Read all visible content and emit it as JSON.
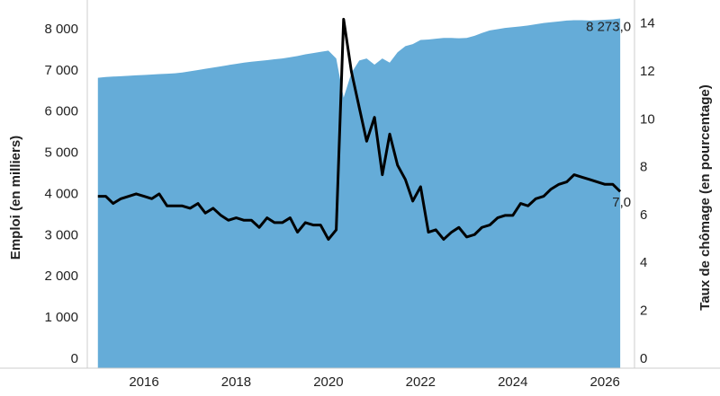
{
  "chart_data": {
    "type": "area-line",
    "y_label": "Emploi (en milliers)",
    "y2_label": "Taux de chômage (en pourcentage)",
    "x": [
      2015.0,
      2015.17,
      2015.33,
      2015.5,
      2015.67,
      2015.83,
      2016.0,
      2016.17,
      2016.33,
      2016.5,
      2016.67,
      2016.83,
      2017.0,
      2017.17,
      2017.33,
      2017.5,
      2017.67,
      2017.83,
      2018.0,
      2018.17,
      2018.33,
      2018.5,
      2018.67,
      2018.83,
      2019.0,
      2019.17,
      2019.33,
      2019.5,
      2019.67,
      2019.83,
      2020.0,
      2020.17,
      2020.33,
      2020.5,
      2020.67,
      2020.83,
      2021.0,
      2021.17,
      2021.33,
      2021.5,
      2021.67,
      2021.83,
      2022.0,
      2022.17,
      2022.33,
      2022.5,
      2022.67,
      2022.83,
      2023.0,
      2023.17,
      2023.33,
      2023.5,
      2023.67,
      2023.83,
      2024.0,
      2024.17,
      2024.33,
      2024.5,
      2024.67,
      2024.83,
      2025.0,
      2025.17,
      2025.33,
      2025.5,
      2025.67,
      2025.83,
      2026.0,
      2026.17,
      2026.33
    ],
    "series": [
      {
        "kind": "area",
        "color": "#65acd8",
        "values": [
          6830,
          6850,
          6860,
          6870,
          6880,
          6890,
          6900,
          6910,
          6920,
          6930,
          6940,
          6960,
          6990,
          7020,
          7050,
          7080,
          7110,
          7140,
          7170,
          7200,
          7220,
          7240,
          7260,
          7280,
          7300,
          7330,
          7360,
          7400,
          7430,
          7460,
          7490,
          7300,
          6350,
          6950,
          7250,
          7300,
          7150,
          7300,
          7200,
          7450,
          7600,
          7650,
          7750,
          7760,
          7780,
          7800,
          7800,
          7790,
          7800,
          7850,
          7920,
          7980,
          8010,
          8040,
          8060,
          8080,
          8100,
          8130,
          8160,
          8180,
          8200,
          8220,
          8230,
          8230,
          8220,
          8230,
          8240,
          8250,
          8273
        ],
        "value_labels": [
          null,
          null,
          null,
          null,
          null,
          null,
          null,
          null,
          null,
          null,
          null,
          null,
          null,
          null,
          null,
          null,
          null,
          null,
          null,
          null,
          null,
          null,
          null,
          null,
          null,
          null,
          null,
          null,
          null,
          null,
          null,
          null,
          null,
          null,
          null,
          null,
          null,
          null,
          null,
          null,
          null,
          null,
          null,
          null,
          null,
          null,
          null,
          null,
          null,
          null,
          null,
          null,
          null,
          null,
          null,
          null,
          null,
          null,
          null,
          null,
          null,
          null,
          null,
          null,
          null,
          null,
          null,
          null,
          "8 273,0"
        ]
      },
      {
        "kind": "line",
        "axis": "y2",
        "color": "#000000",
        "values": [
          6.8,
          6.8,
          6.5,
          6.7,
          6.8,
          6.9,
          6.8,
          6.7,
          6.9,
          6.4,
          6.4,
          6.4,
          6.3,
          6.5,
          6.1,
          6.3,
          6.0,
          5.8,
          5.9,
          5.8,
          5.8,
          5.5,
          5.9,
          5.7,
          5.7,
          5.9,
          5.3,
          5.7,
          5.6,
          5.6,
          5.0,
          5.4,
          14.2,
          12.0,
          10.5,
          9.1,
          10.1,
          7.7,
          9.4,
          8.1,
          7.5,
          6.6,
          7.2,
          5.3,
          5.4,
          5.0,
          5.3,
          5.5,
          5.1,
          5.2,
          5.5,
          5.6,
          5.9,
          6.0,
          6.0,
          6.5,
          6.4,
          6.7,
          6.8,
          7.1,
          7.3,
          7.4,
          7.7,
          7.6,
          7.5,
          7.4,
          7.3,
          7.3,
          7.0
        ],
        "value_labels": [
          null,
          null,
          null,
          null,
          null,
          null,
          null,
          null,
          null,
          null,
          null,
          null,
          null,
          null,
          null,
          null,
          null,
          null,
          null,
          null,
          null,
          null,
          null,
          null,
          null,
          null,
          null,
          null,
          null,
          null,
          null,
          null,
          null,
          null,
          null,
          null,
          null,
          null,
          null,
          null,
          null,
          null,
          null,
          null,
          null,
          null,
          null,
          null,
          null,
          null,
          null,
          null,
          null,
          null,
          null,
          null,
          null,
          null,
          null,
          null,
          null,
          null,
          null,
          null,
          null,
          null,
          null,
          null,
          "7,0"
        ]
      }
    ],
    "xlim": [
      2014.77,
      2026.64
    ],
    "xticks": [
      2016,
      2018,
      2020,
      2022,
      2024,
      2026
    ],
    "ylim": [
      -220,
      8720
    ],
    "yticks": [
      0,
      {
        "value": 1000,
        "label": "1 000"
      },
      {
        "value": 2000,
        "label": "2 000"
      },
      {
        "value": 3000,
        "label": "3 000"
      },
      {
        "value": 4000,
        "label": "4 000"
      },
      {
        "value": 5000,
        "label": "5 000"
      },
      {
        "value": 6000,
        "label": "6 000"
      },
      {
        "value": 7000,
        "label": "7 000"
      },
      {
        "value": 8000,
        "label": "8 000"
      }
    ],
    "y2lim": [
      -0.38,
      15.0
    ],
    "y2ticks": [
      0,
      2,
      4,
      6,
      8,
      10,
      12,
      14
    ]
  }
}
